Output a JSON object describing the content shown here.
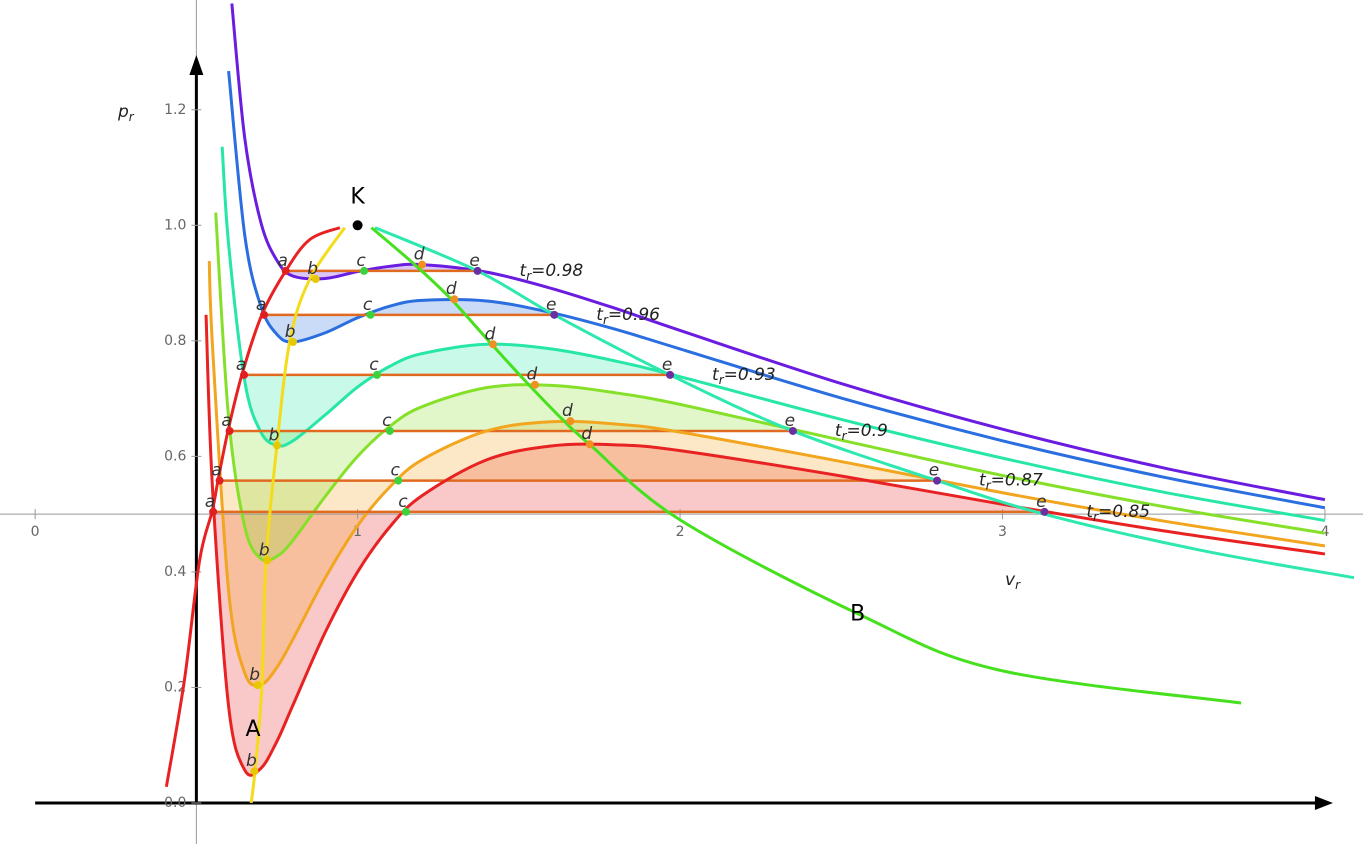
{
  "chart_data": {
    "type": "line",
    "xlabel": {
      "base": "v",
      "sub": "r"
    },
    "ylabel": {
      "base": "p",
      "sub": "r"
    },
    "xlim": [
      -0.109,
      4.118
    ],
    "ylim": [
      -0.071,
      1.39
    ],
    "axis_origin": [
      0.5,
      0.5
    ],
    "xticks": [
      0,
      1,
      2,
      3,
      4
    ],
    "yticks": [
      {
        "value": 0,
        "label": "0.0"
      },
      0.2,
      0.4,
      0.6,
      0.8,
      {
        "value": 1,
        "label": "1.0"
      },
      1.2
    ],
    "critical_point": {
      "label": "K",
      "x": 1,
      "y": 1
    },
    "point_colors": {
      "a": "#e02020",
      "b": "#e8c800",
      "c": "#3cd23c",
      "d": "#f09020",
      "e": "#6a2fa0"
    },
    "series": [
      {
        "label": {
          "t": "t",
          "sub": "r",
          "eq": "=0.98"
        },
        "color": "#6a1de0",
        "x": [
          0.61,
          0.65,
          0.7,
          0.75,
          0.8,
          0.9,
          1.0,
          1.1,
          1.2,
          1.4,
          1.6,
          1.8,
          2.0,
          2.5,
          3.0,
          3.5,
          4.0
        ],
        "values": [
          1.384,
          1.151,
          1.005,
          0.939,
          0.912,
          0.908,
          0.92,
          0.929,
          0.932,
          0.919,
          0.891,
          0.856,
          0.818,
          0.726,
          0.647,
          0.58,
          0.525
        ],
        "points": [
          {
            "label": "a",
            "x": 0.777,
            "y": 0.921
          },
          {
            "label": "b",
            "x": 0.87,
            "y": 0.907
          },
          {
            "label": "c",
            "x": 1.02,
            "y": 0.921
          },
          {
            "label": "d",
            "x": 1.2,
            "y": 0.932
          },
          {
            "label": "e",
            "x": 1.372,
            "y": 0.921
          }
        ]
      },
      {
        "label": {
          "t": "t",
          "sub": "r",
          "eq": "=0.96"
        },
        "color": "#2a6ee0",
        "x": [
          0.6,
          0.65,
          0.7,
          0.75,
          0.8,
          0.9,
          1.0,
          1.1,
          1.2,
          1.4,
          1.6,
          1.8,
          2.0,
          2.5,
          3.0,
          3.5,
          4.0
        ],
        "values": [
          1.267,
          0.983,
          0.86,
          0.811,
          0.798,
          0.814,
          0.84,
          0.86,
          0.87,
          0.869,
          0.849,
          0.82,
          0.786,
          0.701,
          0.627,
          0.564,
          0.511
        ],
        "points": [
          {
            "label": "a",
            "x": 0.71,
            "y": 0.845
          },
          {
            "label": "b",
            "x": 0.8,
            "y": 0.798
          },
          {
            "label": "c",
            "x": 1.04,
            "y": 0.845
          },
          {
            "label": "d",
            "x": 1.3,
            "y": 0.872
          },
          {
            "label": "e",
            "x": 1.61,
            "y": 0.845
          }
        ]
      },
      {
        "label": {
          "t": "t",
          "sub": "r",
          "eq": "=0.93"
        },
        "color": "#26e6a8",
        "x": [
          0.58,
          0.6,
          0.65,
          0.7,
          0.75,
          0.8,
          0.9,
          1.0,
          1.1,
          1.2,
          1.4,
          1.6,
          1.8,
          2.0,
          2.5,
          3.0,
          3.5,
          4.0
        ],
        "values": [
          1.136,
          0.967,
          0.73,
          0.642,
          0.619,
          0.627,
          0.672,
          0.72,
          0.756,
          0.778,
          0.794,
          0.786,
          0.765,
          0.738,
          0.664,
          0.597,
          0.538,
          0.489
        ],
        "points": [
          {
            "label": "a",
            "x": 0.648,
            "y": 0.741
          },
          {
            "label": "b",
            "x": 0.75,
            "y": 0.619
          },
          {
            "label": "c",
            "x": 1.06,
            "y": 0.741
          },
          {
            "label": "d",
            "x": 1.42,
            "y": 0.794
          },
          {
            "label": "e",
            "x": 1.969,
            "y": 0.741
          }
        ]
      },
      {
        "label": {
          "t": "t",
          "sub": "r",
          "eq": "=0.9"
        },
        "color": "#86e02a",
        "x": [
          0.56,
          0.6,
          0.65,
          0.7,
          0.75,
          0.8,
          0.9,
          1.0,
          1.1,
          1.2,
          1.4,
          1.6,
          1.8,
          2.0,
          2.5,
          3.0,
          3.5,
          4.0
        ],
        "values": [
          1.022,
          0.667,
          0.478,
          0.423,
          0.427,
          0.455,
          0.531,
          0.6,
          0.652,
          0.686,
          0.719,
          0.723,
          0.71,
          0.69,
          0.628,
          0.567,
          0.513,
          0.467
        ],
        "points": [
          {
            "label": "a",
            "x": 0.603,
            "y": 0.644
          },
          {
            "label": "b",
            "x": 0.72,
            "y": 0.42
          },
          {
            "label": "c",
            "x": 1.1,
            "y": 0.644
          },
          {
            "label": "d",
            "x": 1.55,
            "y": 0.724
          },
          {
            "label": "e",
            "x": 2.35,
            "y": 0.644
          }
        ]
      },
      {
        "label": {
          "t": "t",
          "sub": "r",
          "eq": "=0.87"
        },
        "color": "#f2a51e",
        "x": [
          0.54,
          0.55,
          0.6,
          0.65,
          0.7,
          0.75,
          0.8,
          0.9,
          1.0,
          1.1,
          1.2,
          1.4,
          1.6,
          1.8,
          2.0,
          2.5,
          3.0,
          3.5,
          4.0
        ],
        "values": [
          0.938,
          0.791,
          0.367,
          0.225,
          0.205,
          0.235,
          0.284,
          0.39,
          0.48,
          0.547,
          0.594,
          0.644,
          0.66,
          0.656,
          0.642,
          0.591,
          0.537,
          0.488,
          0.445
        ],
        "points": [
          {
            "label": "a",
            "x": 0.572,
            "y": 0.558
          },
          {
            "label": "b",
            "x": 0.69,
            "y": 0.204
          },
          {
            "label": "c",
            "x": 1.126,
            "y": 0.558
          },
          {
            "label": "d",
            "x": 1.66,
            "y": 0.661
          },
          {
            "label": "e",
            "x": 2.797,
            "y": 0.558
          }
        ]
      },
      {
        "label": {
          "t": "t",
          "sub": "r",
          "eq": "=0.85"
        },
        "color": "#e82222",
        "x": [
          0.53,
          0.55,
          0.6,
          0.65,
          0.7,
          0.75,
          0.8,
          0.9,
          1.0,
          1.1,
          1.2,
          1.4,
          1.6,
          1.8,
          2.0,
          2.5,
          3.0,
          3.5,
          4.0
        ],
        "values": [
          0.845,
          0.545,
          0.167,
          0.057,
          0.06,
          0.107,
          0.17,
          0.296,
          0.4,
          0.478,
          0.532,
          0.594,
          0.618,
          0.62,
          0.61,
          0.566,
          0.517,
          0.471,
          0.431
        ],
        "points": [
          {
            "label": "a",
            "x": 0.552,
            "y": 0.504
          },
          {
            "label": "b",
            "x": 0.68,
            "y": 0.055
          },
          {
            "label": "c",
            "x": 1.15,
            "y": 0.504
          },
          {
            "label": "d",
            "x": 1.72,
            "y": 0.621
          },
          {
            "label": "e",
            "x": 3.13,
            "y": 0.504
          }
        ]
      }
    ],
    "curves": [
      {
        "color": "#e82222",
        "x": [
          0.407,
          0.463,
          0.51,
          0.549,
          0.567,
          0.598,
          0.641,
          0.703,
          0.777,
          0.851,
          0.945
        ],
        "values": [
          0.028,
          0.213,
          0.42,
          0.505,
          0.558,
          0.644,
          0.741,
          0.845,
          0.921,
          0.975,
          0.996
        ]
      },
      {
        "color": "#2ee8b0",
        "x": [
          1.054,
          1.372,
          1.61,
          1.969,
          2.35,
          2.797,
          3.13,
          3.61,
          4.09
        ],
        "values": [
          0.996,
          0.921,
          0.845,
          0.741,
          0.644,
          0.558,
          0.5,
          0.438,
          0.39
        ]
      },
      {
        "label": "A",
        "color": "#f5dc1a",
        "x": [
          0.67,
          0.682,
          0.703,
          0.716,
          0.75,
          0.79,
          0.851,
          0.96
        ],
        "values": [
          0,
          0.057,
          0.2,
          0.42,
          0.62,
          0.8,
          0.906,
          0.996
        ]
      },
      {
        "label": "B",
        "color": "#46e01e",
        "x": [
          1.043,
          1.177,
          1.287,
          1.411,
          1.526,
          1.637,
          1.721,
          2.0,
          2.557,
          2.99,
          3.74
        ],
        "values": [
          0.996,
          0.932,
          0.874,
          0.797,
          0.727,
          0.663,
          0.62,
          0.49,
          0.326,
          0.23,
          0.173
        ]
      }
    ]
  }
}
